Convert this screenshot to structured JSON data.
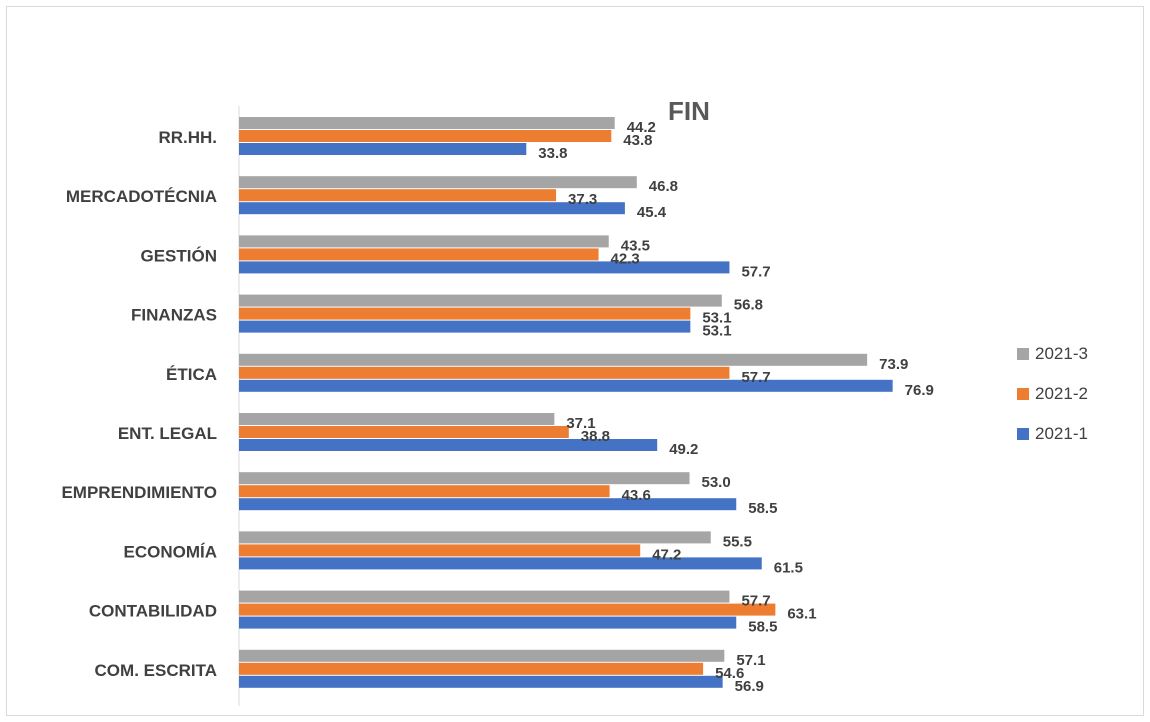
{
  "chart_data": {
    "type": "bar",
    "orientation": "horizontal",
    "title": "FIN",
    "categories": [
      "RR.HH.",
      "MERCADOTÉCNIA",
      "GESTIÓN",
      "FINANZAS",
      "ÉTICA",
      "ENT. LEGAL",
      "EMPRENDIMIENTO",
      "ECONOMÍA",
      "CONTABILIDAD",
      "COM. ESCRITA"
    ],
    "series": [
      {
        "name": "2021-3",
        "color": "#a5a5a5",
        "values": [
          44.2,
          46.8,
          43.5,
          56.8,
          73.9,
          37.1,
          53.0,
          55.5,
          57.7,
          57.1
        ],
        "labels": [
          "44.2",
          "46.8",
          "43.5",
          "56.8",
          "73.9",
          "37.1",
          "53.0",
          "55.5",
          "57.7",
          "57.1"
        ]
      },
      {
        "name": "2021-2",
        "color": "#ed7d31",
        "values": [
          43.8,
          37.3,
          42.3,
          53.1,
          57.7,
          38.8,
          43.6,
          47.2,
          63.1,
          54.6
        ],
        "labels": [
          "43.8",
          "37.3",
          "42.3",
          "53.1",
          "57.7",
          "38.8",
          "43.6",
          "47.2",
          "63.1",
          "54.6"
        ]
      },
      {
        "name": "2021-1",
        "color": "#4472c4",
        "values": [
          33.8,
          45.4,
          57.7,
          53.1,
          76.9,
          49.2,
          58.5,
          61.5,
          58.5,
          56.9
        ],
        "labels": [
          "33.8",
          "45.4",
          "57.7",
          "53.1",
          "76.9",
          "49.2",
          "58.5",
          "61.5",
          "58.5",
          "56.9"
        ]
      }
    ],
    "legend": [
      "2021-3",
      "2021-2",
      "2021-1"
    ],
    "legend_position": "right",
    "xlim": [
      0,
      100
    ],
    "grid": false,
    "axis_color": "#d9d9d9",
    "text_color": "#404040"
  }
}
